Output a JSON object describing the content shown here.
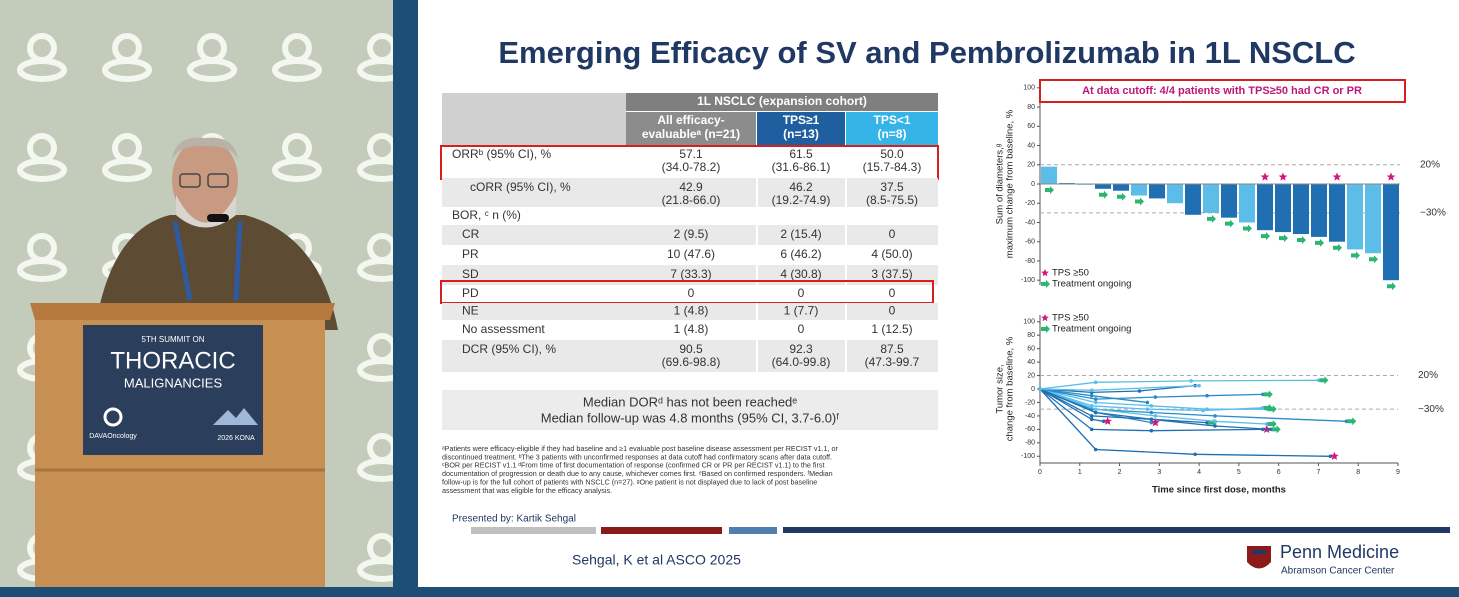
{
  "podium": {
    "edition": "5TH SUMMIT ON",
    "title": "THORACIC",
    "subtitle": "MALIGNANCIES",
    "sponsor": "DAVAOncology",
    "event": "2026 KONA"
  },
  "slide": {
    "title": "Emerging Efficacy of SV and Pembrolizumab in 1L NSCLC",
    "table": {
      "group_header": "1L NSCLC (expansion cohort)",
      "columns": [
        [
          "All efficacy-",
          "evaluableᵃ (n=21)"
        ],
        [
          "TPS≥1",
          "(n=13)"
        ],
        [
          "TPS<1",
          "(n=8)"
        ]
      ],
      "rows": [
        {
          "label": "ORRᵇ (95% CI), %",
          "cells": [
            [
              "57.1",
              "(34.0-78.2)"
            ],
            [
              "61.5",
              "(31.6-86.1)"
            ],
            [
              "50.0",
              "(15.7-84.3)"
            ]
          ]
        },
        {
          "label": "cORR (95% CI), %",
          "cells": [
            [
              "42.9",
              "(21.8-66.0)"
            ],
            [
              "46.2",
              "(19.2-74.9)"
            ],
            [
              "37.5",
              "(8.5-75.5)"
            ]
          ]
        },
        {
          "label": "BOR, ᶜ n (%)"
        },
        {
          "label": "CR",
          "cells": [
            [
              "2 (9.5)"
            ],
            [
              "2 (15.4)"
            ],
            [
              "0"
            ]
          ]
        },
        {
          "label": "PR",
          "cells": [
            [
              "10 (47.6)"
            ],
            [
              "6 (46.2)"
            ],
            [
              "4 (50.0)"
            ]
          ]
        },
        {
          "label": "SD",
          "cells": [
            [
              "7 (33.3)"
            ],
            [
              "4 (30.8)"
            ],
            [
              "3 (37.5)"
            ]
          ]
        },
        {
          "label": "PD",
          "cells": [
            [
              "0"
            ],
            [
              "0"
            ],
            [
              "0"
            ]
          ]
        },
        {
          "label": "NE",
          "cells": [
            [
              "1 (4.8)"
            ],
            [
              "1 (7.7)"
            ],
            [
              "0"
            ]
          ]
        },
        {
          "label": "No assessment",
          "cells": [
            [
              "1 (4.8)"
            ],
            [
              "0"
            ],
            [
              "1 (12.5)"
            ]
          ]
        },
        {
          "label": "DCR (95% CI), %",
          "cells": [
            [
              "90.5",
              "(69.6-98.8)"
            ],
            [
              "92.3",
              "(64.0-99.8)"
            ],
            [
              "87.5",
              "(47.3-99.7"
            ]
          ]
        }
      ]
    },
    "dor_note": [
      "Median DORᵈ has not been reachedᵉ",
      "Median follow-up was 4.8 months (95% CI, 3.7-6.0)ᶠ"
    ],
    "footnotes": [
      "ᵃPatients were efficacy-eligible if they had baseline and ≥1 evaluable post baseline disease assessment per RECIST v1.1, or",
      "discontinued treatment. ᵇThe 3 patients with unconfirmed responses at data cutoff had confirmatory scans after data cutoff.",
      "ᶜBOR per RECIST v1.1 ᵈFrom time of first documentation of response (confirmed CR or PR per RECIST v1.1) to the first",
      "documentation of progression or death due to any cause, whichever comes first. ᵉBased on confirmed responders. ᶠMedian",
      "follow-up is for the full cohort of patients with NSCLC (n=27). ᵍOne patient is not displayed due to lack of post baseline",
      "assessment that was eligible for the efficacy analysis."
    ],
    "presenter": "Presented by: Kartik Sehgal",
    "citation": "Sehgal, K et al ASCO 2025",
    "logo": [
      "Penn Medicine",
      "Abramson Cancer Center"
    ]
  },
  "chart_data": [
    {
      "type": "waterfall",
      "annotation": "At data cutoff: 4/4 patients with TPS≥50 had CR or PR",
      "ylabel": [
        "Sum of diameters,ᵍ",
        "maximum change from baseline, %"
      ],
      "ylim": [
        -105,
        105
      ],
      "yticks": [
        -100,
        -80,
        -60,
        -40,
        -20,
        0,
        20,
        40,
        60,
        80,
        100
      ],
      "reference_lines": [
        {
          "value": 20,
          "label": "20%"
        },
        {
          "value": -30,
          "label": "−30%"
        }
      ],
      "values": [
        18,
        1,
        0,
        -5,
        -7,
        -12,
        -15,
        -20,
        -32,
        -30,
        -35,
        -40,
        -48,
        -50,
        -52,
        -55,
        -60,
        -68,
        -72,
        -100
      ],
      "colors": [
        "#5bbde8",
        "#2a7fc0",
        "#5bbde8",
        "#1f6fb2",
        "#1f6fb2",
        "#5bbde8",
        "#1f6fb2",
        "#5bbde8",
        "#1f6fb2",
        "#5bbde8",
        "#1f6fb2",
        "#5bbde8",
        "#1f6fb2",
        "#1f6fb2",
        "#1f6fb2",
        "#1f6fb2",
        "#1f6fb2",
        "#5bbde8",
        "#5bbde8",
        "#1f6fb2"
      ],
      "tps50": [
        false,
        false,
        false,
        false,
        false,
        false,
        false,
        false,
        false,
        false,
        false,
        false,
        true,
        true,
        false,
        false,
        true,
        false,
        false,
        true
      ],
      "ongoing": [
        true,
        false,
        false,
        true,
        true,
        true,
        false,
        false,
        false,
        true,
        true,
        true,
        true,
        true,
        true,
        true,
        true,
        true,
        true,
        true
      ],
      "legend": [
        {
          "name": "TPS ≥50",
          "color": "#d6157f"
        },
        {
          "name": "Treatment ongoing",
          "color": "#2bb673"
        }
      ]
    },
    {
      "type": "spider",
      "xlabel": "Time since first dose, months",
      "ylabel": [
        "Tumor size,",
        "change from baseline, %"
      ],
      "xlim": [
        0,
        9
      ],
      "xticks": [
        0,
        1,
        2,
        3,
        4,
        5,
        6,
        7,
        8,
        9
      ],
      "ylim": [
        -110,
        110
      ],
      "yticks": [
        -100,
        -80,
        -60,
        -40,
        -20,
        0,
        20,
        40,
        60,
        80,
        100
      ],
      "reference_lines": [
        {
          "value": 20,
          "label": "20%"
        },
        {
          "value": -30,
          "label": "−30%"
        }
      ],
      "legend": [
        {
          "name": "TPS ≥50",
          "color": "#d6157f"
        },
        {
          "name": "Treatment ongoing",
          "color": "#2bb673"
        }
      ],
      "series": [
        {
          "color": "#1f6fb2",
          "x": [
            0,
            1.4,
            3.9,
            7.3
          ],
          "values": [
            0,
            -90,
            -97,
            -100
          ],
          "tps50": true,
          "ongoing": false
        },
        {
          "color": "#1f6fb2",
          "x": [
            0,
            1.3,
            2.8,
            5.6
          ],
          "values": [
            0,
            -60,
            -62,
            -60
          ],
          "tps50": true,
          "ongoing": false
        },
        {
          "color": "#2a8cc8",
          "x": [
            0,
            1.3,
            2.8,
            4.4,
            7.7
          ],
          "values": [
            0,
            -30,
            -35,
            -40,
            -48
          ],
          "tps50": false,
          "ongoing": true
        },
        {
          "color": "#5bbde8",
          "x": [
            0,
            1.4,
            3.8,
            7.0
          ],
          "values": [
            0,
            10,
            12,
            13
          ],
          "tps50": false,
          "ongoing": true
        },
        {
          "color": "#1f6fb2",
          "x": [
            0,
            1.3,
            2.5,
            3.9
          ],
          "values": [
            0,
            -5,
            -3,
            5
          ],
          "tps50": false,
          "ongoing": false
        },
        {
          "color": "#5bbde8",
          "x": [
            0,
            1.4,
            2.8,
            4.2,
            5.7
          ],
          "values": [
            0,
            -20,
            -25,
            -30,
            -30
          ],
          "tps50": false,
          "ongoing": true
        },
        {
          "color": "#1f6fb2",
          "x": [
            0,
            1.3,
            1.6
          ],
          "values": [
            0,
            -45,
            -48
          ],
          "tps50": true,
          "ongoing": false
        },
        {
          "color": "#2a8cc8",
          "x": [
            0,
            1.4,
            2.8
          ],
          "values": [
            0,
            -35,
            -50
          ],
          "tps50": true,
          "ongoing": false
        },
        {
          "color": "#5bbde8",
          "x": [
            0,
            1.3,
            2.7,
            4.1,
            5.6
          ],
          "values": [
            0,
            -25,
            -30,
            -32,
            -28
          ],
          "tps50": false,
          "ongoing": true
        },
        {
          "color": "#2a8cc8",
          "x": [
            0,
            1.4,
            2.9,
            4.2,
            5.6
          ],
          "values": [
            0,
            -15,
            -12,
            -10,
            -8
          ],
          "tps50": false,
          "ongoing": true
        },
        {
          "color": "#1f6fb2",
          "x": [
            0,
            1.3,
            2.8,
            4.2
          ],
          "values": [
            0,
            -40,
            -45,
            -50
          ],
          "tps50": false,
          "ongoing": true
        },
        {
          "color": "#5bbde8",
          "x": [
            0,
            1.4,
            2.9,
            4.4,
            5.7
          ],
          "values": [
            0,
            -30,
            -40,
            -48,
            -52
          ],
          "tps50": false,
          "ongoing": true
        },
        {
          "color": "#2a8cc8",
          "x": [
            0,
            1.3,
            2.7
          ],
          "values": [
            0,
            -10,
            -20
          ],
          "tps50": false,
          "ongoing": false
        },
        {
          "color": "#1f6fb2",
          "x": [
            0,
            1.4,
            2.8,
            4.4,
            5.8
          ],
          "values": [
            0,
            -35,
            -45,
            -55,
            -60
          ],
          "tps50": false,
          "ongoing": true
        },
        {
          "color": "#5bbde8",
          "x": [
            0,
            1.3,
            4.0
          ],
          "values": [
            0,
            -2,
            5
          ],
          "tps50": false,
          "ongoing": false
        }
      ]
    }
  ]
}
